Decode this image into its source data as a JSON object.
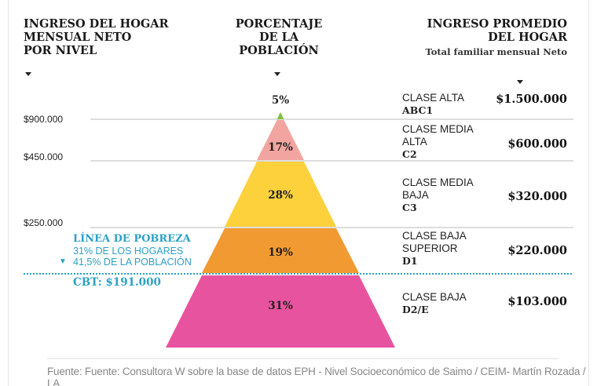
{
  "headers": {
    "left": [
      "INGRESO DEL HOGAR",
      "MENSUAL NETO",
      "POR NIVEL"
    ],
    "center": [
      "PORCENTAJE",
      "DE LA",
      "POBLACIÓN"
    ],
    "right": [
      "INGRESO PROMEDIO",
      "DEL HOGAR"
    ],
    "right_sub": "Total familiar mensual Neto"
  },
  "chart_data": {
    "type": "pyramid",
    "thresholds": [
      "$900.000",
      "$450.000",
      "$250.000"
    ],
    "levels": [
      {
        "pct": "5%",
        "class": "CLASE ALTA",
        "code": "ABC1",
        "income": "$1.500.000",
        "color": "#7dc242"
      },
      {
        "pct": "17%",
        "class": [
          "CLASE MEDIA",
          "ALTA"
        ],
        "code": "C2",
        "income": "$600.000",
        "color": "#f2a5a0"
      },
      {
        "pct": "28%",
        "class": [
          "CLASE MEDIA",
          "BAJA"
        ],
        "code": "C3",
        "income": "$320.000",
        "color": "#fcd13c"
      },
      {
        "pct": "19%",
        "class": [
          "CLASE BAJA",
          "SUPERIOR"
        ],
        "code": "D1",
        "income": "$220.000",
        "color": "#f29a32"
      },
      {
        "pct": "31%",
        "class": "CLASE BAJA",
        "code": "D2/E",
        "income": "$103.000",
        "color": "#e8539f"
      }
    ]
  },
  "poverty": {
    "title": "LÍNEA DE POBREZA",
    "households": "31% DE LOS HOGARES",
    "population": "41,5% DE LA POBLACIÓN",
    "cbt": "CBT: $191.000",
    "color": "#2ba1c6"
  },
  "source": "Fuente: Fuente: Consultora W sobre la base de datos EPH - Nivel Socioeconómico de Saimo / CEIM- Martín Rozada / LA"
}
